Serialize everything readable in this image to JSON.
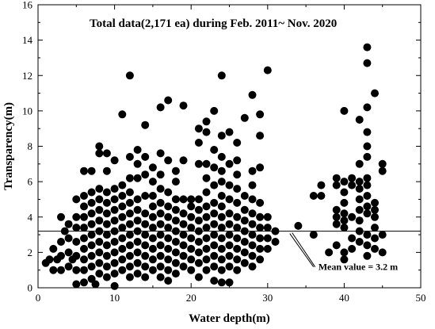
{
  "chart_data": {
    "type": "scatter",
    "title": "Total data(2,171 ea) during Feb. 2011~ Nov. 2020",
    "xlabel": "Water depth(m)",
    "ylabel": "Transparency(m)",
    "xlim": [
      0,
      50
    ],
    "ylim": [
      0,
      16
    ],
    "xticks": [
      0,
      10,
      20,
      30,
      40,
      50
    ],
    "yticks": [
      0,
      2,
      4,
      6,
      8,
      10,
      12,
      14,
      16
    ],
    "xtick_labels": [
      "0",
      "10",
      "20",
      "30",
      "40",
      "50"
    ],
    "ytick_labels": [
      "0",
      "2",
      "4",
      "6",
      "8",
      "10",
      "12",
      "14",
      "16"
    ],
    "grid": false,
    "marker_color": "#000000",
    "mean_line": {
      "y": 3.2,
      "label": "Mean value = 3.2 m"
    },
    "points": [
      [
        1,
        1.4
      ],
      [
        1.5,
        1.6
      ],
      [
        2,
        1.0
      ],
      [
        2,
        2.2
      ],
      [
        2.5,
        1.6
      ],
      [
        3,
        1.0
      ],
      [
        3,
        1.8
      ],
      [
        3,
        2.6
      ],
      [
        3.5,
        3.2
      ],
      [
        3,
        4.0
      ],
      [
        4,
        1.2
      ],
      [
        4,
        2.0
      ],
      [
        4,
        2.8
      ],
      [
        4,
        3.6
      ],
      [
        4.5,
        1.6
      ],
      [
        5,
        1.0
      ],
      [
        5,
        1.8
      ],
      [
        5,
        2.6
      ],
      [
        5,
        3.4
      ],
      [
        5,
        4.0
      ],
      [
        5,
        5.0
      ],
      [
        5,
        0.2
      ],
      [
        6,
        0.3
      ],
      [
        6,
        1.0
      ],
      [
        6,
        1.6
      ],
      [
        6,
        2.2
      ],
      [
        6,
        2.8
      ],
      [
        6,
        3.4
      ],
      [
        6,
        4.0
      ],
      [
        6,
        4.6
      ],
      [
        6,
        5.2
      ],
      [
        6,
        6.6
      ],
      [
        7,
        0.5
      ],
      [
        7,
        1.2
      ],
      [
        7,
        1.8
      ],
      [
        7,
        2.4
      ],
      [
        7,
        3.0
      ],
      [
        7,
        3.6
      ],
      [
        7,
        4.2
      ],
      [
        7,
        4.8
      ],
      [
        7,
        5.4
      ],
      [
        7,
        6.6
      ],
      [
        7.5,
        0.2
      ],
      [
        8,
        0.8
      ],
      [
        8,
        1.4
      ],
      [
        8,
        2.0
      ],
      [
        8,
        2.6
      ],
      [
        8,
        3.2
      ],
      [
        8,
        3.8
      ],
      [
        8,
        4.4
      ],
      [
        8,
        5.0
      ],
      [
        8,
        5.6
      ],
      [
        8,
        7.6
      ],
      [
        8,
        8.0
      ],
      [
        9,
        0.6
      ],
      [
        9,
        1.2
      ],
      [
        9,
        1.8
      ],
      [
        9,
        2.4
      ],
      [
        9,
        3.0
      ],
      [
        9,
        3.6
      ],
      [
        9,
        4.2
      ],
      [
        9,
        4.8
      ],
      [
        9,
        5.4
      ],
      [
        9,
        6.6
      ],
      [
        9,
        7.6
      ],
      [
        10,
        0.1
      ],
      [
        10,
        0.8
      ],
      [
        10,
        1.4
      ],
      [
        10,
        2.0
      ],
      [
        10,
        2.6
      ],
      [
        10,
        3.2
      ],
      [
        10,
        3.8
      ],
      [
        10,
        4.4
      ],
      [
        10,
        5.0
      ],
      [
        10,
        5.6
      ],
      [
        10,
        7.2
      ],
      [
        11,
        1.0
      ],
      [
        11,
        1.6
      ],
      [
        11,
        2.2
      ],
      [
        11,
        2.8
      ],
      [
        11,
        3.4
      ],
      [
        11,
        4.0
      ],
      [
        11,
        4.6
      ],
      [
        11,
        5.2
      ],
      [
        11,
        5.8
      ],
      [
        11,
        9.8
      ],
      [
        12,
        0.6
      ],
      [
        12,
        1.2
      ],
      [
        12,
        1.8
      ],
      [
        12,
        2.4
      ],
      [
        12,
        3.0
      ],
      [
        12,
        3.6
      ],
      [
        12,
        4.2
      ],
      [
        12,
        4.8
      ],
      [
        12,
        5.4
      ],
      [
        12,
        6.2
      ],
      [
        12,
        7.4
      ],
      [
        12,
        12.0
      ],
      [
        13,
        0.8
      ],
      [
        13,
        1.4
      ],
      [
        13,
        2.0
      ],
      [
        13,
        2.6
      ],
      [
        13,
        3.2
      ],
      [
        13,
        3.8
      ],
      [
        13,
        4.4
      ],
      [
        13,
        5.0
      ],
      [
        13,
        6.2
      ],
      [
        13,
        7.0
      ],
      [
        13,
        7.8
      ],
      [
        14,
        0.6
      ],
      [
        14,
        1.2
      ],
      [
        14,
        1.8
      ],
      [
        14,
        2.4
      ],
      [
        14,
        3.0
      ],
      [
        14,
        3.6
      ],
      [
        14,
        4.2
      ],
      [
        14,
        5.2
      ],
      [
        14,
        6.4
      ],
      [
        14,
        7.4
      ],
      [
        14,
        9.2
      ],
      [
        15,
        1.0
      ],
      [
        15,
        1.6
      ],
      [
        15,
        2.2
      ],
      [
        15,
        2.8
      ],
      [
        15,
        3.4
      ],
      [
        15,
        4.0
      ],
      [
        15,
        4.6
      ],
      [
        15,
        5.2
      ],
      [
        15,
        6.0
      ],
      [
        15,
        6.8
      ],
      [
        16,
        0.6
      ],
      [
        16,
        1.2
      ],
      [
        16,
        1.8
      ],
      [
        16,
        2.4
      ],
      [
        16,
        3.0
      ],
      [
        16,
        3.6
      ],
      [
        16,
        4.2
      ],
      [
        16,
        4.8
      ],
      [
        16,
        5.6
      ],
      [
        16,
        6.4
      ],
      [
        16,
        7.6
      ],
      [
        16,
        10.2
      ],
      [
        17,
        0.4
      ],
      [
        17,
        1.0
      ],
      [
        17,
        1.6
      ],
      [
        17,
        2.2
      ],
      [
        17,
        2.8
      ],
      [
        17,
        3.4
      ],
      [
        17,
        4.0
      ],
      [
        17,
        4.6
      ],
      [
        17,
        5.4
      ],
      [
        17,
        7.2
      ],
      [
        17,
        10.6
      ],
      [
        18,
        0.8
      ],
      [
        18,
        1.4
      ],
      [
        18,
        2.0
      ],
      [
        18,
        2.6
      ],
      [
        18,
        3.2
      ],
      [
        18,
        3.8
      ],
      [
        18,
        4.4
      ],
      [
        18,
        5.0
      ],
      [
        18,
        6.0
      ],
      [
        18,
        6.6
      ],
      [
        19,
        1.2
      ],
      [
        19,
        1.8
      ],
      [
        19,
        2.4
      ],
      [
        19,
        3.0
      ],
      [
        19,
        3.6
      ],
      [
        19,
        4.2
      ],
      [
        19,
        5.0
      ],
      [
        19,
        7.2
      ],
      [
        19,
        10.3
      ],
      [
        20,
        1.0
      ],
      [
        20,
        1.6
      ],
      [
        20,
        2.2
      ],
      [
        20,
        2.8
      ],
      [
        20,
        3.4
      ],
      [
        20,
        4.0
      ],
      [
        20,
        4.6
      ],
      [
        20,
        5.0
      ],
      [
        21,
        0.6
      ],
      [
        21,
        1.4
      ],
      [
        21,
        2.0
      ],
      [
        21,
        2.6
      ],
      [
        21,
        3.2
      ],
      [
        21,
        3.8
      ],
      [
        21,
        4.4
      ],
      [
        21,
        5.0
      ],
      [
        21,
        7.0
      ],
      [
        21,
        8.2
      ],
      [
        21,
        9.0
      ],
      [
        22,
        1.0
      ],
      [
        22,
        1.6
      ],
      [
        22,
        2.2
      ],
      [
        22,
        2.8
      ],
      [
        22,
        3.4
      ],
      [
        22,
        4.0
      ],
      [
        22,
        4.6
      ],
      [
        22,
        5.4
      ],
      [
        22,
        6.2
      ],
      [
        22,
        7.0
      ],
      [
        22,
        8.8
      ],
      [
        22,
        9.4
      ],
      [
        23,
        0.4
      ],
      [
        23,
        1.2
      ],
      [
        23,
        1.8
      ],
      [
        23,
        2.4
      ],
      [
        23,
        3.0
      ],
      [
        23,
        3.6
      ],
      [
        23,
        4.2
      ],
      [
        23,
        4.8
      ],
      [
        23,
        5.8
      ],
      [
        23,
        6.8
      ],
      [
        23,
        7.8
      ],
      [
        23,
        10.0
      ],
      [
        24,
        0.3
      ],
      [
        24,
        1.0
      ],
      [
        24,
        1.6
      ],
      [
        24,
        2.2
      ],
      [
        24,
        2.8
      ],
      [
        24,
        3.4
      ],
      [
        24,
        4.0
      ],
      [
        24,
        4.6
      ],
      [
        24,
        5.2
      ],
      [
        24,
        6.0
      ],
      [
        24,
        6.6
      ],
      [
        24,
        7.4
      ],
      [
        24,
        8.6
      ],
      [
        24,
        12.0
      ],
      [
        25,
        0.3
      ],
      [
        25,
        1.2
      ],
      [
        25,
        1.8
      ],
      [
        25,
        2.4
      ],
      [
        25,
        3.0
      ],
      [
        25,
        3.6
      ],
      [
        25,
        4.2
      ],
      [
        25,
        5.0
      ],
      [
        25,
        5.8
      ],
      [
        25,
        7.0
      ],
      [
        25,
        8.8
      ],
      [
        26,
        1.0
      ],
      [
        26,
        1.6
      ],
      [
        26,
        2.2
      ],
      [
        26,
        2.8
      ],
      [
        26,
        3.4
      ],
      [
        26,
        4.0
      ],
      [
        26,
        4.8
      ],
      [
        26,
        5.6
      ],
      [
        26,
        6.4
      ],
      [
        26,
        7.2
      ],
      [
        26,
        8.2
      ],
      [
        27,
        1.4
      ],
      [
        27,
        2.0
      ],
      [
        27,
        2.6
      ],
      [
        27,
        3.2
      ],
      [
        27,
        3.8
      ],
      [
        27,
        4.4
      ],
      [
        27,
        5.2
      ],
      [
        27,
        9.6
      ],
      [
        28,
        1.2
      ],
      [
        28,
        1.8
      ],
      [
        28,
        2.4
      ],
      [
        28,
        3.0
      ],
      [
        28,
        3.6
      ],
      [
        28,
        4.2
      ],
      [
        28,
        5.0
      ],
      [
        28,
        5.8
      ],
      [
        28,
        6.6
      ],
      [
        28,
        10.9
      ],
      [
        29,
        1.6
      ],
      [
        29,
        2.2
      ],
      [
        29,
        2.8
      ],
      [
        29,
        3.4
      ],
      [
        29,
        4.0
      ],
      [
        29,
        4.8
      ],
      [
        29,
        6.8
      ],
      [
        29,
        8.6
      ],
      [
        29,
        9.8
      ],
      [
        30,
        2.2
      ],
      [
        30,
        2.8
      ],
      [
        30,
        3.4
      ],
      [
        30,
        4.0
      ],
      [
        30,
        12.3
      ],
      [
        31,
        2.6
      ],
      [
        31,
        3.2
      ],
      [
        34,
        3.5
      ],
      [
        36,
        3.0
      ],
      [
        36,
        5.2
      ],
      [
        37,
        5.2
      ],
      [
        37,
        5.8
      ],
      [
        38,
        2.0
      ],
      [
        39,
        2.4
      ],
      [
        39,
        3.6
      ],
      [
        39,
        4.0
      ],
      [
        39,
        4.4
      ],
      [
        39,
        5.8
      ],
      [
        39,
        6.2
      ],
      [
        40,
        1.6
      ],
      [
        40,
        2.0
      ],
      [
        40,
        3.4
      ],
      [
        40,
        3.8
      ],
      [
        40,
        4.2
      ],
      [
        40,
        4.8
      ],
      [
        40,
        5.4
      ],
      [
        40,
        6.0
      ],
      [
        40,
        10.0
      ],
      [
        41,
        2.2
      ],
      [
        41,
        2.8
      ],
      [
        41,
        4.0
      ],
      [
        41,
        5.8
      ],
      [
        41,
        6.2
      ],
      [
        42,
        2.6
      ],
      [
        42,
        3.2
      ],
      [
        42,
        3.8
      ],
      [
        42,
        4.4
      ],
      [
        42,
        5.0
      ],
      [
        42,
        5.6
      ],
      [
        42,
        6.0
      ],
      [
        42,
        7.0
      ],
      [
        42,
        9.5
      ],
      [
        43,
        1.8
      ],
      [
        43,
        2.4
      ],
      [
        43,
        3.0
      ],
      [
        43,
        4.2
      ],
      [
        43,
        4.6
      ],
      [
        43,
        5.2
      ],
      [
        43,
        5.8
      ],
      [
        43,
        6.2
      ],
      [
        43,
        7.4
      ],
      [
        43,
        8.0
      ],
      [
        43,
        8.8
      ],
      [
        43,
        10.2
      ],
      [
        43,
        12.7
      ],
      [
        43,
        13.6
      ],
      [
        44,
        2.2
      ],
      [
        44,
        2.8
      ],
      [
        44,
        3.4
      ],
      [
        44,
        4.0
      ],
      [
        44,
        4.4
      ],
      [
        44,
        4.8
      ],
      [
        44,
        11.0
      ],
      [
        45,
        2.0
      ],
      [
        45,
        3.0
      ],
      [
        45,
        6.6
      ],
      [
        45,
        7.0
      ]
    ]
  }
}
